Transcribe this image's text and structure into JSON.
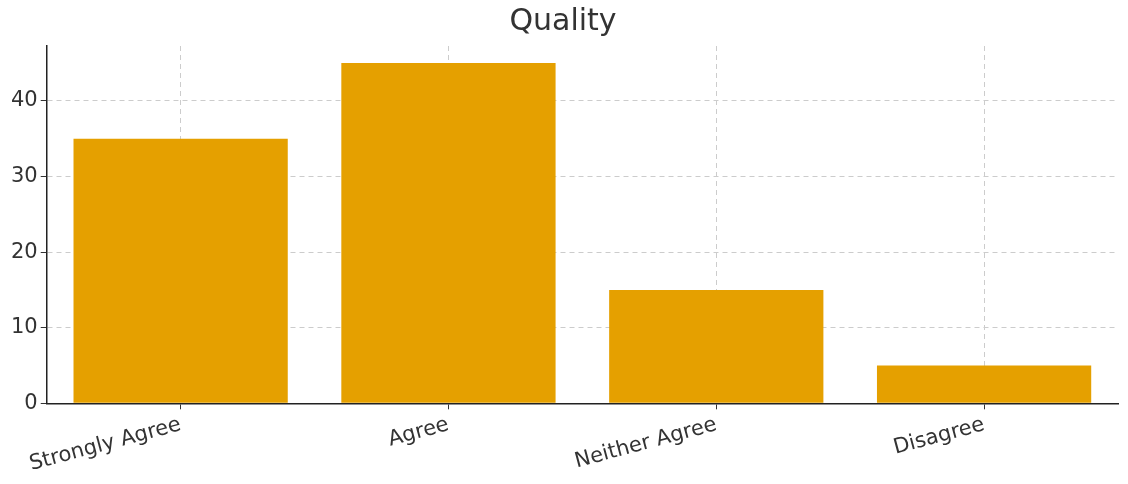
{
  "chart_data": {
    "type": "bar",
    "title": "Quality",
    "categories": [
      "Strongly Agree",
      "Agree",
      "Neither Agree",
      "Disagree"
    ],
    "values": [
      35,
      45,
      15,
      5
    ],
    "color": "#e5a000",
    "ylim": [
      0,
      47.25
    ],
    "yticks": [
      0,
      10,
      20,
      30,
      40
    ],
    "grid": true,
    "legend": false
  }
}
